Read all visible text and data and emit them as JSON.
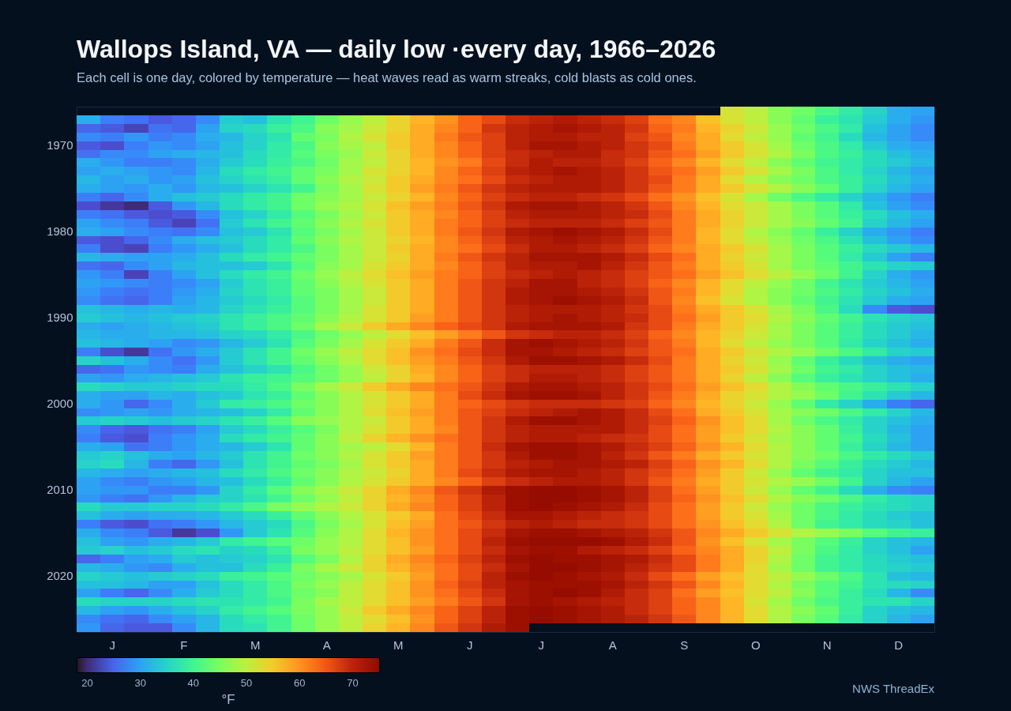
{
  "chart_data": {
    "type": "heatmap",
    "title": "Wallops Island, VA — daily low ·every day, 1966–2026",
    "subtitle": "Each cell is one day, colored by temperature — heat waves read as warm streaks, cold blasts as cold ones.",
    "categories": [
      null,
      "J",
      null,
      null,
      "F",
      null,
      null,
      "M",
      null,
      null,
      "A",
      null,
      null,
      "M",
      null,
      null,
      "J",
      null,
      null,
      "J",
      null,
      null,
      "A",
      null,
      null,
      "S",
      null,
      null,
      "O",
      null,
      null,
      "N",
      null,
      null,
      "D",
      null
    ],
    "y_categories": [
      null,
      null,
      null,
      null,
      "1970",
      null,
      null,
      null,
      null,
      null,
      null,
      null,
      null,
      null,
      "1980",
      null,
      null,
      null,
      null,
      null,
      null,
      null,
      null,
      null,
      "1990",
      null,
      null,
      null,
      null,
      null,
      null,
      null,
      null,
      null,
      "2000",
      null,
      null,
      null,
      null,
      null,
      null,
      null,
      null,
      null,
      "2010",
      null,
      null,
      null,
      null,
      null,
      null,
      null,
      null,
      null,
      "2020",
      null,
      null,
      null,
      null,
      null,
      null
    ],
    "cells": [
      [
        null,
        null,
        null,
        null,
        null,
        null,
        null,
        null,
        null,
        null,
        null,
        null,
        null,
        null,
        null,
        null,
        null,
        null,
        null,
        null,
        null,
        null,
        null,
        null,
        null,
        null,
        null,
        52,
        50,
        46,
        44,
        41,
        38,
        35,
        31,
        30
      ],
      [
        31,
        27,
        26,
        24,
        25,
        28,
        34,
        33,
        37,
        40,
        44,
        47,
        50,
        54,
        57,
        60,
        64,
        66,
        69,
        70,
        71,
        70,
        69,
        67,
        63,
        61,
        56,
        52,
        50,
        46,
        43,
        39,
        37,
        34,
        31,
        29
      ],
      [
        25,
        24,
        22,
        26,
        25,
        30,
        35,
        36,
        39,
        41,
        46,
        48,
        51,
        54,
        58,
        61,
        64,
        68,
        70,
        71,
        72,
        71,
        70,
        68,
        64,
        62,
        57,
        54,
        51,
        47,
        44,
        41,
        38,
        33,
        30,
        28
      ],
      [
        28,
        27,
        29,
        27,
        28,
        31,
        32,
        35,
        37,
        43,
        45,
        49,
        52,
        55,
        58,
        62,
        65,
        67,
        70,
        71,
        71,
        70,
        70,
        67,
        65,
        61,
        58,
        53,
        50,
        47,
        43,
        40,
        36,
        32,
        30,
        28
      ],
      [
        24,
        23,
        27,
        29,
        28,
        30,
        33,
        35,
        38,
        41,
        46,
        48,
        50,
        55,
        58,
        61,
        64,
        67,
        70,
        72,
        72,
        71,
        70,
        68,
        66,
        62,
        58,
        55,
        52,
        48,
        44,
        41,
        38,
        34,
        31,
        30
      ],
      [
        26,
        28,
        28,
        30,
        31,
        32,
        33,
        36,
        38,
        42,
        45,
        47,
        51,
        54,
        58,
        61,
        64,
        67,
        69,
        70,
        71,
        71,
        69,
        68,
        65,
        63,
        59,
        55,
        52,
        49,
        45,
        41,
        39,
        36,
        33,
        31
      ],
      [
        31,
        29,
        27,
        27,
        28,
        31,
        34,
        36,
        39,
        41,
        44,
        48,
        50,
        54,
        57,
        60,
        62,
        66,
        69,
        71,
        70,
        70,
        69,
        67,
        64,
        61,
        57,
        53,
        50,
        46,
        43,
        40,
        38,
        36,
        34,
        32
      ],
      [
        30,
        31,
        30,
        29,
        28,
        32,
        36,
        38,
        40,
        43,
        45,
        48,
        52,
        54,
        57,
        61,
        64,
        67,
        70,
        71,
        72,
        71,
        70,
        68,
        65,
        63,
        59,
        55,
        52,
        48,
        45,
        41,
        38,
        35,
        32,
        30
      ],
      [
        32,
        30,
        31,
        29,
        30,
        33,
        35,
        37,
        39,
        43,
        46,
        49,
        51,
        55,
        58,
        61,
        63,
        66,
        69,
        70,
        71,
        71,
        70,
        68,
        66,
        62,
        58,
        53,
        49,
        46,
        44,
        41,
        39,
        36,
        33,
        31
      ],
      [
        31,
        30,
        29,
        31,
        29,
        32,
        33,
        35,
        37,
        40,
        45,
        48,
        52,
        55,
        59,
        62,
        65,
        68,
        70,
        71,
        71,
        71,
        70,
        68,
        65,
        62,
        58,
        55,
        52,
        49,
        46,
        43,
        39,
        35,
        32,
        30
      ],
      [
        27,
        25,
        28,
        31,
        33,
        34,
        36,
        38,
        40,
        44,
        46,
        48,
        51,
        54,
        57,
        61,
        64,
        67,
        69,
        70,
        70,
        69,
        68,
        66,
        63,
        60,
        56,
        52,
        48,
        44,
        41,
        38,
        35,
        32,
        29,
        27
      ],
      [
        23,
        21,
        20,
        24,
        29,
        32,
        36,
        38,
        40,
        44,
        47,
        49,
        52,
        56,
        59,
        62,
        65,
        68,
        71,
        72,
        72,
        71,
        70,
        68,
        65,
        61,
        57,
        53,
        51,
        48,
        45,
        42,
        38,
        33,
        30,
        28
      ],
      [
        27,
        26,
        24,
        23,
        24,
        28,
        33,
        35,
        38,
        42,
        45,
        48,
        51,
        55,
        58,
        61,
        64,
        67,
        70,
        71,
        71,
        71,
        70,
        69,
        66,
        62,
        58,
        54,
        51,
        48,
        45,
        42,
        39,
        36,
        33,
        31
      ],
      [
        30,
        28,
        27,
        24,
        22,
        26,
        34,
        37,
        40,
        43,
        46,
        49,
        52,
        55,
        58,
        62,
        64,
        67,
        69,
        70,
        70,
        70,
        69,
        67,
        65,
        62,
        58,
        54,
        51,
        48,
        46,
        43,
        40,
        35,
        32,
        30
      ],
      [
        31,
        30,
        28,
        27,
        26,
        28,
        33,
        34,
        37,
        42,
        45,
        48,
        51,
        55,
        58,
        62,
        65,
        68,
        71,
        72,
        73,
        72,
        71,
        69,
        66,
        62,
        57,
        53,
        49,
        46,
        43,
        39,
        35,
        31,
        29,
        27
      ],
      [
        24,
        23,
        25,
        28,
        31,
        33,
        34,
        36,
        38,
        43,
        46,
        49,
        51,
        54,
        57,
        61,
        64,
        67,
        70,
        71,
        72,
        71,
        70,
        68,
        65,
        62,
        57,
        53,
        50,
        47,
        44,
        41,
        37,
        33,
        30,
        28
      ],
      [
        27,
        23,
        22,
        27,
        29,
        31,
        33,
        36,
        38,
        41,
        45,
        48,
        51,
        55,
        58,
        61,
        63,
        66,
        69,
        71,
        71,
        70,
        69,
        67,
        64,
        61,
        58,
        55,
        52,
        48,
        45,
        42,
        39,
        36,
        34,
        32
      ],
      [
        32,
        31,
        30,
        30,
        31,
        33,
        36,
        38,
        40,
        43,
        45,
        48,
        51,
        54,
        58,
        62,
        65,
        68,
        70,
        72,
        72,
        72,
        71,
        69,
        66,
        63,
        58,
        54,
        51,
        48,
        45,
        42,
        38,
        34,
        30,
        27
      ],
      [
        26,
        25,
        28,
        30,
        32,
        33,
        33,
        34,
        37,
        42,
        46,
        48,
        52,
        55,
        58,
        61,
        64,
        67,
        70,
        71,
        71,
        72,
        70,
        68,
        65,
        62,
        58,
        55,
        52,
        48,
        45,
        43,
        40,
        37,
        35,
        34
      ],
      [
        29,
        27,
        22,
        27,
        30,
        33,
        36,
        38,
        40,
        44,
        47,
        50,
        53,
        56,
        59,
        62,
        64,
        67,
        69,
        70,
        71,
        70,
        69,
        67,
        65,
        63,
        59,
        56,
        53,
        50,
        47,
        44,
        40,
        35,
        31,
        29
      ],
      [
        30,
        29,
        28,
        27,
        28,
        30,
        34,
        37,
        39,
        43,
        46,
        49,
        52,
        55,
        58,
        62,
        65,
        68,
        70,
        72,
        72,
        70,
        69,
        67,
        64,
        61,
        57,
        53,
        50,
        47,
        44,
        40,
        37,
        34,
        32,
        30
      ],
      [
        29,
        27,
        26,
        27,
        29,
        31,
        35,
        37,
        39,
        43,
        45,
        48,
        51,
        55,
        58,
        62,
        65,
        68,
        71,
        72,
        72,
        71,
        70,
        68,
        65,
        62,
        57,
        53,
        49,
        46,
        44,
        41,
        38,
        35,
        33,
        31
      ],
      [
        28,
        26,
        25,
        27,
        30,
        32,
        34,
        36,
        38,
        42,
        45,
        48,
        51,
        55,
        58,
        62,
        65,
        68,
        71,
        72,
        73,
        72,
        71,
        69,
        65,
        61,
        56,
        52,
        49,
        46,
        43,
        40,
        37,
        34,
        31,
        30
      ],
      [
        33,
        32,
        31,
        32,
        31,
        32,
        35,
        37,
        39,
        42,
        45,
        48,
        52,
        55,
        58,
        62,
        65,
        68,
        70,
        71,
        71,
        71,
        70,
        68,
        66,
        62,
        58,
        55,
        52,
        48,
        45,
        41,
        36,
        28,
        24,
        23
      ],
      [
        34,
        33,
        32,
        33,
        34,
        35,
        37,
        39,
        41,
        43,
        46,
        49,
        52,
        55,
        59,
        62,
        65,
        68,
        70,
        71,
        72,
        71,
        70,
        69,
        66,
        63,
        59,
        55,
        53,
        49,
        46,
        43,
        40,
        37,
        35,
        34
      ],
      [
        31,
        30,
        31,
        32,
        33,
        34,
        37,
        39,
        41,
        44,
        48,
        51,
        55,
        58,
        61,
        64,
        66,
        68,
        71,
        72,
        72,
        72,
        71,
        68,
        66,
        62,
        58,
        55,
        52,
        48,
        45,
        42,
        39,
        36,
        34,
        33
      ],
      [
        32,
        31,
        31,
        32,
        32,
        33,
        35,
        36,
        38,
        41,
        44,
        47,
        50,
        53,
        56,
        59,
        62,
        65,
        68,
        69,
        70,
        70,
        69,
        67,
        64,
        61,
        57,
        54,
        51,
        48,
        45,
        42,
        39,
        36,
        34,
        32
      ],
      [
        33,
        32,
        31,
        30,
        28,
        29,
        32,
        34,
        37,
        42,
        45,
        48,
        52,
        55,
        58,
        62,
        65,
        69,
        72,
        73,
        72,
        71,
        70,
        68,
        65,
        62,
        57,
        53,
        50,
        47,
        45,
        42,
        38,
        35,
        33,
        31
      ],
      [
        27,
        23,
        21,
        26,
        29,
        31,
        34,
        37,
        40,
        44,
        47,
        50,
        53,
        56,
        60,
        63,
        66,
        69,
        72,
        72,
        71,
        70,
        69,
        67,
        65,
        63,
        58,
        55,
        52,
        49,
        47,
        44,
        41,
        38,
        35,
        34
      ],
      [
        35,
        33,
        31,
        28,
        26,
        29,
        34,
        37,
        40,
        43,
        46,
        49,
        53,
        56,
        59,
        62,
        65,
        68,
        71,
        73,
        73,
        72,
        71,
        69,
        66,
        62,
        58,
        54,
        51,
        47,
        43,
        39,
        36,
        33,
        31,
        30
      ],
      [
        25,
        26,
        29,
        28,
        27,
        31,
        33,
        35,
        37,
        41,
        44,
        47,
        51,
        54,
        58,
        61,
        64,
        67,
        69,
        70,
        70,
        70,
        69,
        67,
        65,
        62,
        58,
        55,
        52,
        48,
        44,
        40,
        38,
        35,
        33,
        32
      ],
      [
        30,
        29,
        31,
        32,
        33,
        34,
        37,
        39,
        40,
        42,
        44,
        47,
        50,
        54,
        57,
        61,
        64,
        67,
        69,
        71,
        71,
        70,
        69,
        67,
        65,
        62,
        58,
        54,
        50,
        46,
        42,
        39,
        37,
        35,
        33,
        31
      ],
      [
        36,
        35,
        34,
        34,
        35,
        36,
        36,
        38,
        41,
        45,
        48,
        51,
        55,
        58,
        61,
        63,
        65,
        68,
        71,
        72,
        72,
        71,
        70,
        68,
        66,
        63,
        59,
        56,
        53,
        49,
        46,
        43,
        41,
        39,
        37,
        35
      ],
      [
        31,
        30,
        30,
        32,
        31,
        33,
        34,
        37,
        39,
        43,
        46,
        49,
        52,
        55,
        58,
        62,
        66,
        69,
        72,
        73,
        73,
        72,
        70,
        68,
        65,
        62,
        58,
        54,
        52,
        49,
        47,
        44,
        40,
        37,
        34,
        32
      ],
      [
        31,
        29,
        25,
        28,
        31,
        34,
        38,
        39,
        41,
        44,
        46,
        49,
        52,
        55,
        58,
        62,
        64,
        66,
        68,
        69,
        69,
        69,
        68,
        67,
        64,
        61,
        57,
        54,
        51,
        47,
        43,
        38,
        35,
        31,
        27,
        25
      ],
      [
        28,
        29,
        30,
        29,
        31,
        32,
        33,
        35,
        38,
        43,
        46,
        49,
        53,
        56,
        59,
        62,
        65,
        67,
        69,
        70,
        71,
        72,
        71,
        69,
        66,
        63,
        58,
        55,
        52,
        48,
        46,
        44,
        41,
        38,
        35,
        32
      ],
      [
        34,
        35,
        34,
        33,
        34,
        35,
        37,
        39,
        42,
        46,
        47,
        49,
        51,
        55,
        58,
        62,
        65,
        68,
        71,
        73,
        73,
        72,
        71,
        69,
        67,
        64,
        60,
        56,
        53,
        48,
        44,
        41,
        38,
        35,
        33,
        31
      ],
      [
        28,
        25,
        24,
        26,
        27,
        30,
        34,
        36,
        39,
        42,
        45,
        49,
        52,
        55,
        58,
        61,
        65,
        68,
        70,
        71,
        71,
        71,
        71,
        69,
        66,
        63,
        59,
        56,
        53,
        49,
        46,
        43,
        39,
        35,
        32,
        30
      ],
      [
        27,
        24,
        23,
        27,
        29,
        31,
        36,
        38,
        40,
        43,
        46,
        50,
        54,
        57,
        60,
        63,
        65,
        68,
        70,
        71,
        71,
        70,
        69,
        68,
        66,
        63,
        59,
        55,
        52,
        48,
        46,
        43,
        40,
        36,
        33,
        30
      ],
      [
        31,
        30,
        26,
        27,
        29,
        31,
        32,
        34,
        37,
        43,
        46,
        48,
        50,
        53,
        57,
        62,
        65,
        69,
        72,
        73,
        73,
        72,
        71,
        69,
        67,
        64,
        60,
        57,
        53,
        49,
        46,
        43,
        39,
        35,
        32,
        30
      ],
      [
        34,
        35,
        33,
        31,
        30,
        32,
        34,
        37,
        40,
        44,
        46,
        49,
        52,
        55,
        59,
        62,
        65,
        68,
        71,
        73,
        73,
        72,
        70,
        68,
        65,
        62,
        58,
        55,
        52,
        49,
        46,
        44,
        41,
        38,
        36,
        34
      ],
      [
        35,
        36,
        32,
        27,
        25,
        29,
        33,
        37,
        40,
        43,
        45,
        48,
        52,
        55,
        58,
        62,
        65,
        68,
        70,
        71,
        72,
        72,
        71,
        70,
        67,
        64,
        60,
        57,
        53,
        49,
        45,
        42,
        39,
        36,
        34,
        32
      ],
      [
        32,
        31,
        30,
        31,
        32,
        33,
        36,
        38,
        41,
        44,
        46,
        49,
        51,
        54,
        58,
        62,
        66,
        69,
        71,
        72,
        72,
        71,
        70,
        68,
        66,
        63,
        59,
        55,
        51,
        47,
        43,
        40,
        38,
        35,
        33,
        33
      ],
      [
        30,
        28,
        27,
        29,
        30,
        32,
        33,
        36,
        39,
        43,
        46,
        49,
        52,
        55,
        58,
        61,
        64,
        67,
        69,
        70,
        71,
        71,
        70,
        68,
        65,
        62,
        58,
        55,
        52,
        49,
        47,
        44,
        40,
        35,
        32,
        30
      ],
      [
        30,
        29,
        29,
        27,
        27,
        29,
        35,
        38,
        42,
        46,
        48,
        51,
        54,
        58,
        61,
        65,
        68,
        71,
        73,
        74,
        74,
        73,
        72,
        70,
        67,
        63,
        59,
        55,
        51,
        47,
        43,
        40,
        36,
        31,
        28,
        27
      ],
      [
        29,
        27,
        26,
        29,
        32,
        34,
        35,
        37,
        40,
        44,
        47,
        50,
        54,
        57,
        60,
        64,
        67,
        70,
        73,
        74,
        74,
        73,
        72,
        70,
        67,
        64,
        60,
        56,
        53,
        49,
        46,
        44,
        41,
        38,
        36,
        35
      ],
      [
        36,
        34,
        34,
        35,
        35,
        36,
        38,
        41,
        45,
        47,
        49,
        51,
        54,
        58,
        61,
        64,
        67,
        70,
        73,
        74,
        73,
        72,
        71,
        69,
        66,
        63,
        59,
        55,
        51,
        47,
        44,
        41,
        39,
        37,
        36,
        35
      ],
      [
        33,
        31,
        30,
        31,
        31,
        32,
        34,
        36,
        39,
        43,
        46,
        49,
        52,
        55,
        58,
        63,
        66,
        69,
        72,
        72,
        71,
        70,
        69,
        68,
        66,
        63,
        59,
        55,
        52,
        48,
        44,
        41,
        38,
        36,
        34,
        33
      ],
      [
        27,
        24,
        23,
        26,
        27,
        29,
        32,
        34,
        36,
        41,
        45,
        48,
        52,
        56,
        59,
        63,
        65,
        68,
        70,
        71,
        70,
        69,
        69,
        68,
        66,
        63,
        60,
        56,
        53,
        49,
        44,
        40,
        38,
        36,
        35,
        33
      ],
      [
        31,
        28,
        27,
        24,
        21,
        23,
        29,
        34,
        37,
        42,
        46,
        49,
        53,
        57,
        60,
        63,
        66,
        69,
        72,
        73,
        73,
        72,
        71,
        70,
        68,
        65,
        61,
        58,
        55,
        52,
        49,
        47,
        45,
        42,
        40,
        39
      ],
      [
        33,
        30,
        29,
        31,
        32,
        34,
        38,
        40,
        42,
        44,
        47,
        49,
        53,
        56,
        60,
        63,
        66,
        70,
        73,
        74,
        74,
        74,
        73,
        71,
        69,
        65,
        60,
        56,
        52,
        48,
        45,
        42,
        39,
        35,
        33,
        32
      ],
      [
        34,
        35,
        33,
        34,
        36,
        37,
        35,
        36,
        39,
        45,
        47,
        50,
        53,
        56,
        59,
        63,
        66,
        69,
        72,
        73,
        73,
        71,
        70,
        69,
        67,
        64,
        61,
        58,
        54,
        50,
        45,
        41,
        38,
        35,
        33,
        30
      ],
      [
        25,
        27,
        30,
        31,
        34,
        33,
        34,
        35,
        37,
        42,
        45,
        49,
        54,
        58,
        61,
        64,
        67,
        70,
        73,
        74,
        73,
        73,
        72,
        71,
        69,
        66,
        62,
        58,
        54,
        49,
        44,
        40,
        38,
        36,
        34,
        33
      ],
      [
        32,
        31,
        29,
        28,
        31,
        33,
        33,
        36,
        39,
        45,
        48,
        51,
        54,
        57,
        60,
        63,
        66,
        69,
        72,
        74,
        74,
        73,
        72,
        70,
        68,
        66,
        62,
        58,
        53,
        48,
        44,
        40,
        38,
        36,
        35,
        34
      ],
      [
        35,
        34,
        33,
        34,
        35,
        36,
        39,
        40,
        42,
        44,
        46,
        48,
        52,
        55,
        59,
        63,
        66,
        70,
        73,
        74,
        73,
        72,
        71,
        69,
        66,
        63,
        59,
        56,
        53,
        50,
        47,
        44,
        41,
        37,
        33,
        32
      ],
      [
        33,
        33,
        32,
        30,
        30,
        33,
        36,
        38,
        41,
        45,
        47,
        50,
        53,
        56,
        60,
        64,
        67,
        70,
        72,
        73,
        73,
        73,
        72,
        70,
        68,
        65,
        61,
        57,
        53,
        49,
        45,
        42,
        40,
        37,
        36,
        35
      ],
      [
        30,
        27,
        25,
        28,
        31,
        34,
        36,
        38,
        41,
        44,
        46,
        50,
        53,
        56,
        60,
        63,
        66,
        69,
        72,
        73,
        74,
        73,
        71,
        69,
        67,
        63,
        59,
        56,
        53,
        50,
        46,
        42,
        39,
        36,
        32,
        28
      ],
      [
        36,
        35,
        35,
        35,
        36,
        37,
        37,
        38,
        40,
        45,
        48,
        50,
        53,
        56,
        59,
        62,
        65,
        68,
        72,
        73,
        72,
        71,
        70,
        69,
        67,
        64,
        61,
        57,
        52,
        48,
        44,
        41,
        39,
        37,
        37,
        35
      ],
      [
        32,
        30,
        29,
        31,
        33,
        35,
        38,
        40,
        42,
        45,
        47,
        51,
        55,
        58,
        61,
        64,
        67,
        70,
        73,
        74,
        73,
        72,
        71,
        69,
        67,
        64,
        61,
        57,
        53,
        49,
        46,
        43,
        39,
        35,
        33,
        32
      ],
      [
        28,
        26,
        25,
        28,
        30,
        32,
        36,
        38,
        40,
        44,
        47,
        50,
        53,
        56,
        60,
        64,
        67,
        70,
        73,
        74,
        73,
        72,
        71,
        70,
        68,
        65,
        61,
        57,
        53,
        49,
        45,
        42,
        38,
        35,
        32,
        30
      ],
      [
        29,
        25,
        24,
        24,
        28,
        32,
        36,
        37,
        40,
        44,
        47,
        50,
        54,
        57,
        61,
        65,
        68,
        71,
        73,
        null,
        null,
        null,
        null,
        null,
        null,
        null,
        null,
        null,
        null,
        null,
        null,
        null,
        null,
        null,
        null,
        null
      ]
    ],
    "clabel": "°F",
    "clim": [
      18,
      75
    ],
    "cticks": [
      20,
      30,
      40,
      50,
      60,
      70
    ],
    "annotations": [
      "NWS ThreadEx"
    ]
  }
}
